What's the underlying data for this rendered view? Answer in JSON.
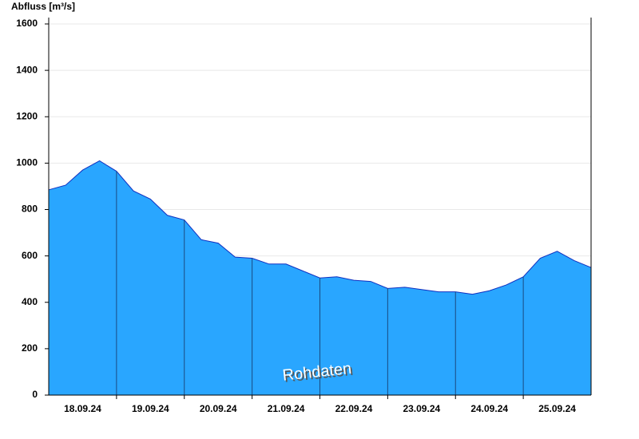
{
  "chart_data": {
    "type": "area",
    "y_label": "Abfluss [m³/s]",
    "annotation": "Rohdaten",
    "x": [
      0,
      6,
      12,
      18,
      24,
      30,
      36,
      42,
      48,
      54,
      60,
      66,
      72,
      78,
      84,
      90,
      96,
      102,
      108,
      114,
      120,
      126,
      132,
      138,
      144,
      150,
      156,
      162,
      168,
      174,
      180,
      186,
      192
    ],
    "values": [
      885,
      905,
      970,
      1010,
      965,
      880,
      845,
      775,
      755,
      670,
      655,
      595,
      590,
      565,
      565,
      535,
      505,
      510,
      495,
      490,
      460,
      465,
      455,
      445,
      445,
      435,
      450,
      475,
      510,
      590,
      620,
      580,
      550
    ],
    "color": "#29a6ff",
    "xlim": [
      0,
      192
    ],
    "xticks": [
      {
        "value": 12,
        "label": "18.09.24"
      },
      {
        "value": 36,
        "label": "19.09.24"
      },
      {
        "value": 60,
        "label": "20.09.24"
      },
      {
        "value": 84,
        "label": "21.09.24"
      },
      {
        "value": 108,
        "label": "22.09.24"
      },
      {
        "value": 132,
        "label": "23.09.24"
      },
      {
        "value": 156,
        "label": "24.09.24"
      },
      {
        "value": 180,
        "label": "25.09.24"
      }
    ],
    "ylim": [
      0,
      1600
    ],
    "yticks": [
      0,
      200,
      400,
      600,
      800,
      1000,
      1200,
      1400,
      1600
    ],
    "grid": true
  }
}
